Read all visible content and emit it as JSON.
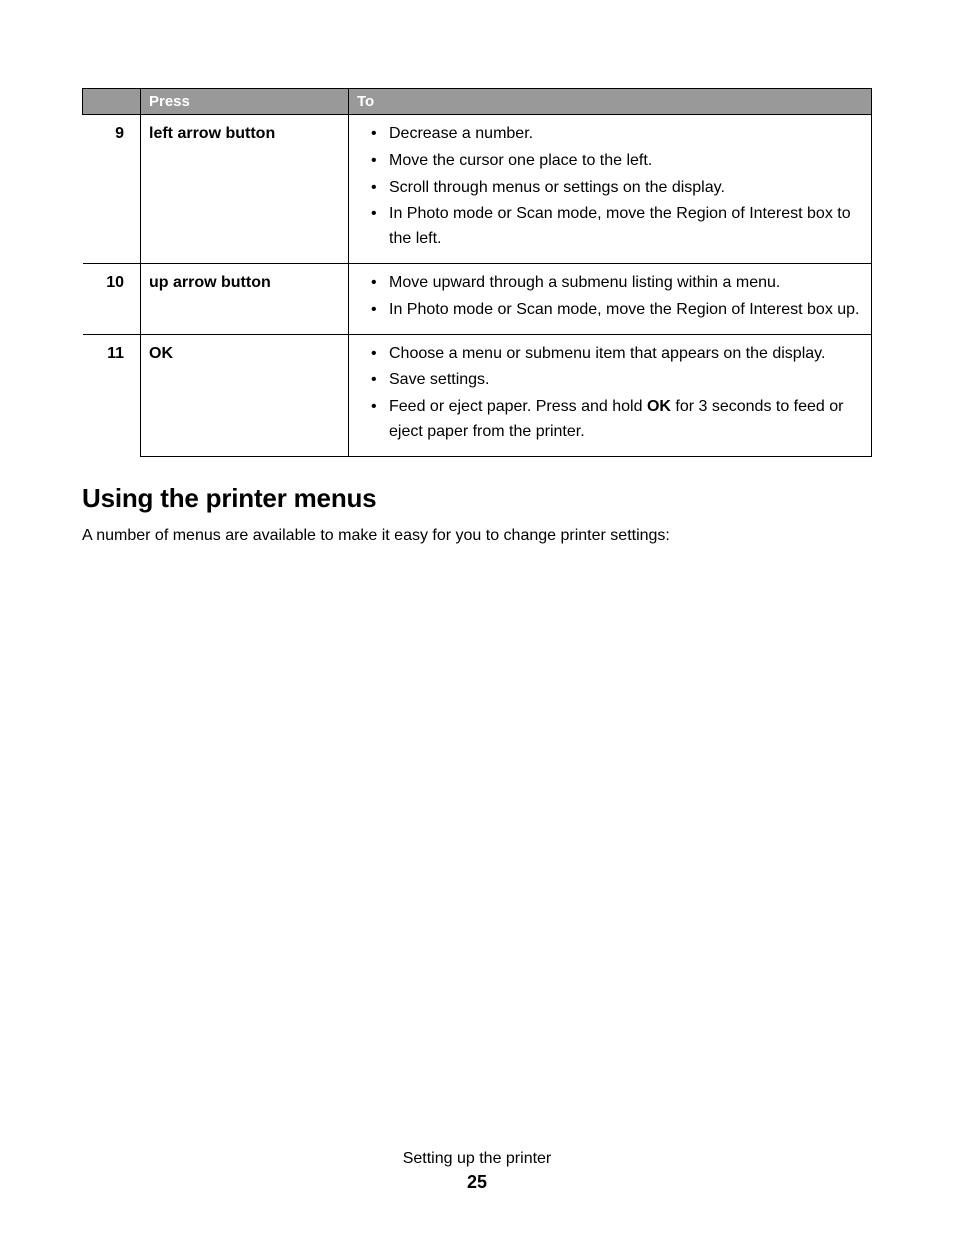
{
  "table": {
    "header_bg": "#999999",
    "header_fg": "#ffffff",
    "border_color": "#000000",
    "columns": {
      "num": "",
      "press": "Press",
      "to": "To"
    },
    "rows": [
      {
        "num": "9",
        "press": "left arrow button",
        "actions": [
          {
            "text": "Decrease a number."
          },
          {
            "text": "Move the cursor one place to the left."
          },
          {
            "text": "Scroll through menus or settings on the display."
          },
          {
            "text": "In Photo mode or Scan mode, move the Region of Interest box to the left."
          }
        ]
      },
      {
        "num": "10",
        "press": "up arrow button",
        "actions": [
          {
            "text": "Move upward through a submenu listing within a menu."
          },
          {
            "text": "In Photo mode or Scan mode, move the Region of Interest box up."
          }
        ]
      },
      {
        "num": "11",
        "press": "OK",
        "actions": [
          {
            "text": "Choose a menu or submenu item that appears on the display."
          },
          {
            "text": "Save settings."
          },
          {
            "pre": "Feed or eject paper. Press and hold ",
            "bold": "OK",
            "post": " for 3 seconds to feed or eject paper from the printer."
          }
        ]
      }
    ]
  },
  "section": {
    "heading": "Using the printer menus",
    "body": "A number of menus are available to make it easy for you to change printer settings:"
  },
  "footer": {
    "chapter": "Setting up the printer",
    "page": "25"
  }
}
